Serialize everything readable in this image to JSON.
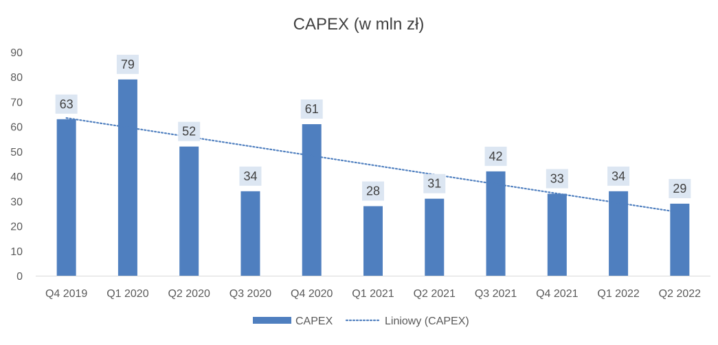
{
  "chart_data": {
    "type": "bar",
    "title": "CAPEX (w mln zł)",
    "categories": [
      "Q4 2019",
      "Q1 2020",
      "Q2 2020",
      "Q3 2020",
      "Q4 2020",
      "Q1 2021",
      "Q2 2021",
      "Q3 2021",
      "Q4 2021",
      "Q1 2022",
      "Q2 2022"
    ],
    "series": [
      {
        "name": "CAPEX",
        "values": [
          63,
          79,
          52,
          34,
          61,
          28,
          31,
          42,
          33,
          34,
          29
        ],
        "color": "#4f7fbf"
      }
    ],
    "trendline": {
      "name": "Liniowy (CAPEX)",
      "type": "linear",
      "style": "dotted",
      "color": "#4f7fbf",
      "start_value": 63.5,
      "end_value": 25.5
    },
    "ylim": [
      0,
      90
    ],
    "yticks": [
      0,
      10,
      20,
      30,
      40,
      50,
      60,
      70,
      80,
      90
    ],
    "grid": false,
    "data_labels": true,
    "data_label_bg": "#dce6f2",
    "legend_position": "bottom",
    "xlabel": "",
    "ylabel": ""
  }
}
